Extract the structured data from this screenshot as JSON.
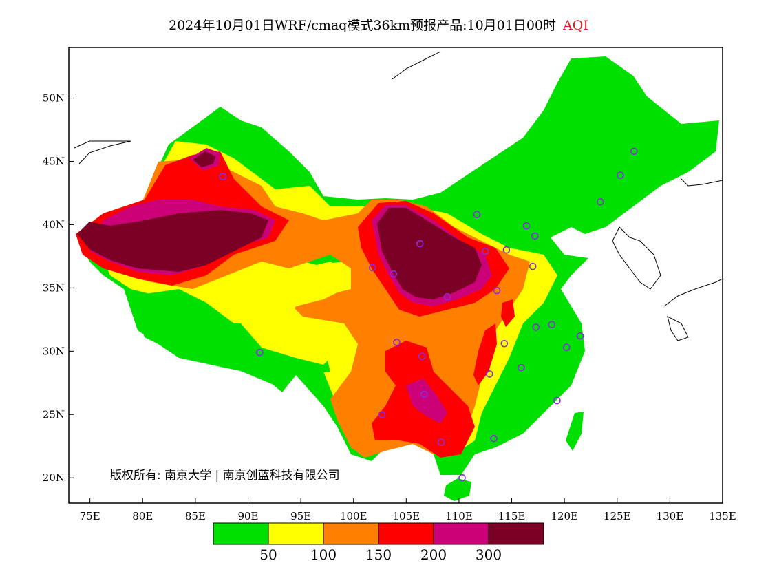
{
  "title": {
    "main": "2024年10月01日WRF/cmaq模式36km预报产品:10月01日00时",
    "variable": "AQI",
    "variable_color": "#e02020"
  },
  "map": {
    "lon_range": [
      73,
      135
    ],
    "lat_range": [
      18,
      54
    ],
    "lon_ticks": [
      {
        "v": 75,
        "label": "75E"
      },
      {
        "v": 80,
        "label": "80E"
      },
      {
        "v": 85,
        "label": "85E"
      },
      {
        "v": 90,
        "label": "90E"
      },
      {
        "v": 95,
        "label": "95E"
      },
      {
        "v": 100,
        "label": "100E"
      },
      {
        "v": 105,
        "label": "105E"
      },
      {
        "v": 110,
        "label": "110E"
      },
      {
        "v": 115,
        "label": "115E"
      },
      {
        "v": 120,
        "label": "120E"
      },
      {
        "v": 125,
        "label": "125E"
      },
      {
        "v": 130,
        "label": "130E"
      },
      {
        "v": 135,
        "label": "135E"
      }
    ],
    "lat_ticks": [
      {
        "v": 20,
        "label": "20N"
      },
      {
        "v": 25,
        "label": "25N"
      },
      {
        "v": 30,
        "label": "30N"
      },
      {
        "v": 35,
        "label": "35N"
      },
      {
        "v": 40,
        "label": "40N"
      },
      {
        "v": 45,
        "label": "45N"
      },
      {
        "v": 50,
        "label": "50N"
      }
    ],
    "copyright": "版权所有: 南京大学 | 南京创蓝科技有限公司",
    "station_color": "#8a2be2"
  },
  "legend": {
    "bins": [
      {
        "color": "#00e000"
      },
      {
        "color": "#ffff00"
      },
      {
        "color": "#ff8000"
      },
      {
        "color": "#ff0000"
      },
      {
        "color": "#cc0077"
      },
      {
        "color": "#7a0026"
      }
    ],
    "labels": [
      "50",
      "100",
      "150",
      "200",
      "300"
    ]
  },
  "stations": [
    [
      87.6,
      43.8
    ],
    [
      91.1,
      29.9
    ],
    [
      101.8,
      36.6
    ],
    [
      103.8,
      36.1
    ],
    [
      106.3,
      38.5
    ],
    [
      111.7,
      40.8
    ],
    [
      116.4,
      39.9
    ],
    [
      117.2,
      39.1
    ],
    [
      114.5,
      38.0
    ],
    [
      112.5,
      37.9
    ],
    [
      117.0,
      36.7
    ],
    [
      113.6,
      34.8
    ],
    [
      108.9,
      34.3
    ],
    [
      104.1,
      30.7
    ],
    [
      106.5,
      29.6
    ],
    [
      106.7,
      26.6
    ],
    [
      102.7,
      25.0
    ],
    [
      108.3,
      22.8
    ],
    [
      113.3,
      23.1
    ],
    [
      110.3,
      20.0
    ],
    [
      112.9,
      28.2
    ],
    [
      114.3,
      30.6
    ],
    [
      115.9,
      28.7
    ],
    [
      117.3,
      31.9
    ],
    [
      118.8,
      32.1
    ],
    [
      120.2,
      30.3
    ],
    [
      121.5,
      31.2
    ],
    [
      119.3,
      26.1
    ],
    [
      123.4,
      41.8
    ],
    [
      125.3,
      43.9
    ],
    [
      126.6,
      45.8
    ]
  ]
}
